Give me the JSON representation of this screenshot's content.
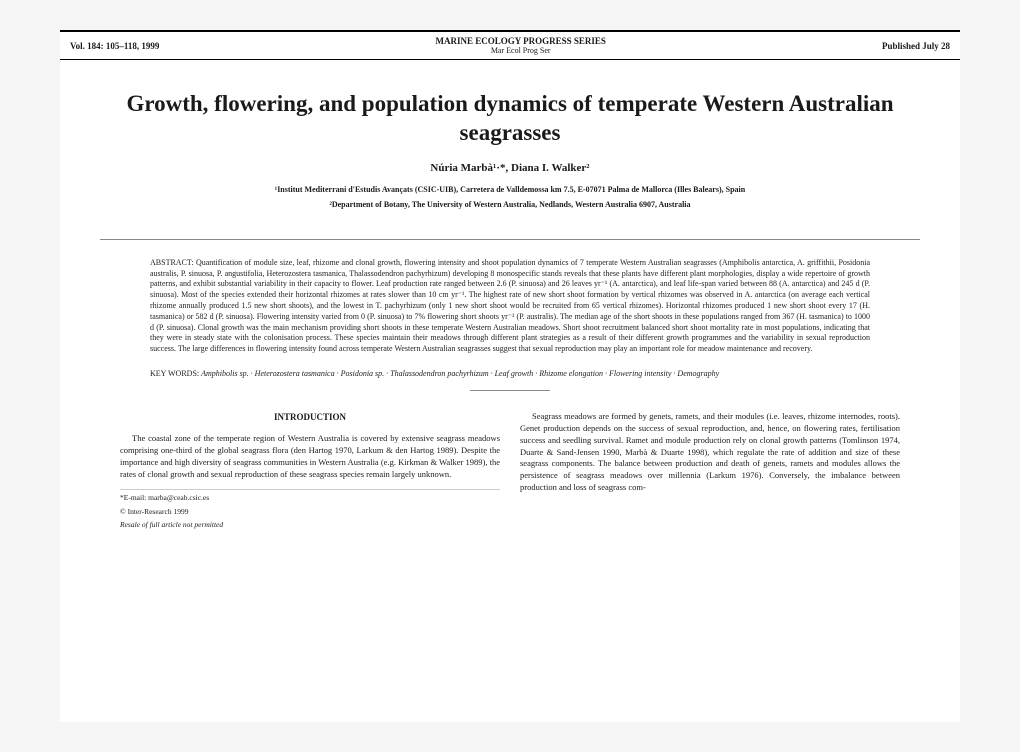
{
  "header": {
    "volume": "Vol. 184: 105–118, 1999",
    "series": "MARINE ECOLOGY PROGRESS SERIES",
    "series_sub": "Mar Ecol Prog Ser",
    "published": "Published July 28"
  },
  "title": "Growth, flowering, and population dynamics of temperate Western Australian seagrasses",
  "authors": "Núria Marbà¹·*, Diana I. Walker²",
  "affil1": "¹Institut Mediterrani d'Estudis Avançats (CSIC-UIB), Carretera de Valldemossa km 7.5, E-07071 Palma de Mallorca (Illes Balears), Spain",
  "affil2": "²Department of Botany, The University of Western Australia, Nedlands, Western Australia 6907, Australia",
  "abstract_label": "ABSTRACT: ",
  "abstract_text": "Quantification of module size, leaf, rhizome and clonal growth, flowering intensity and shoot population dynamics of 7 temperate Western Australian seagrasses (Amphibolis antarctica, A. griffithii, Posidonia australis, P. sinuosa, P. angustifolia, Heterozostera tasmanica, Thalassodendron pachyrhizum) developing 8 monospecific stands reveals that these plants have different plant morphologies, display a wide repertoire of growth patterns, and exhibit substantial variability in their capacity to flower. Leaf production rate ranged between 2.6 (P. sinuosa) and 26 leaves yr⁻¹ (A. antarctica), and leaf life-span varied between 88 (A. antarctica) and 245 d (P. sinuosa). Most of the species extended their horizontal rhizomes at rates slower than 10 cm yr⁻¹. The highest rate of new short shoot formation by vertical rhizomes was observed in A. antarctica (on average each vertical rhizome annually produced 1.5 new short shoots), and the lowest in T. pachyrhizum (only 1 new short shoot would be recruited from 65 vertical rhizomes). Horizontal rhizomes produced 1 new short shoot every 17 (H. tasmanica) or 582 d (P. sinuosa). Flowering intensity varied from 0 (P. sinuosa) to 7% flowering short shoots yr⁻¹ (P. australis). The median age of the short shoots in these populations ranged from 367 (H. tasmanica) to 1000 d (P. sinuosa). Clonal growth was the main mechanism providing short shoots in these temperate Western Australian meadows. Short shoot recruitment balanced short shoot mortality rate in most populations, indicating that they were in steady state with the colonisation process. These species maintain their meadows through different plant strategies as a result of their different growth programmes and the variability in sexual reproduction success. The large differences in flowering intensity found across temperate Western Australian seagrasses suggest that sexual reproduction may play an important role for meadow maintenance and recovery.",
  "keywords_label": "KEY WORDS: ",
  "keywords_text": "Amphibolis sp. · Heterozostera tasmanica · Posidonia sp. · Thalassodendron pachyrhizum · Leaf growth · Rhizome elongation · Flowering intensity · Demography",
  "intro_head": "INTRODUCTION",
  "intro_p1": "The coastal zone of the temperate region of Western Australia is covered by extensive seagrass meadows comprising one-third of the global seagrass flora (den Hartog 1970, Larkum & den Hartog 1989). Despite the importance and high diversity of seagrass communities in Western Australia (e.g. Kirkman & Walker 1989), the rates of clonal growth and sexual reproduction of these seagrass species remain largely unknown.",
  "col2_p1": "Seagrass meadows are formed by genets, ramets, and their modules (i.e. leaves, rhizome internodes, roots). Genet production depends on the success of sexual reproduction, and, hence, on flowering rates, fertilisation success and seedling survival. Ramet and module production rely on clonal growth patterns (Tomlinson 1974, Duarte & Sand-Jensen 1990, Marbà & Duarte 1998), which regulate the rate of addition and size of these seagrass components. The balance between production and death of genets, ramets and modules allows the persistence of seagrass meadows over millennia (Larkum 1976). Conversely, the imbalance between production and loss of seagrass com-",
  "footnote_email": "*E-mail: marba@ceab.csic.es",
  "copyright": "© Inter-Research 1999",
  "resale": "Resale of full article not permitted"
}
